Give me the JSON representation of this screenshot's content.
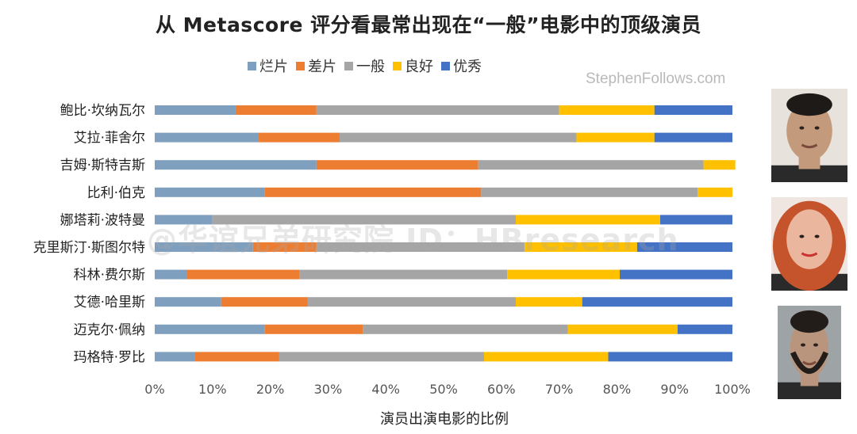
{
  "chart_data": {
    "type": "bar",
    "orientation": "horizontal",
    "stacked": true,
    "title": "从 Metascore 评分看最常出现在“一般”电影中的顶级演员",
    "xlabel": "演员出演电影的比例",
    "ylabel": "",
    "xlim": [
      0,
      100
    ],
    "x_ticks": [
      "0%",
      "10%",
      "20%",
      "30%",
      "40%",
      "50%",
      "60%",
      "70%",
      "80%",
      "90%",
      "100%"
    ],
    "categories": [
      "鲍比·坎纳瓦尔",
      "艾拉·菲舍尔",
      "吉姆·斯特吉斯",
      "比利·伯克",
      "娜塔莉·波特曼",
      "克里斯汀·斯图尔特",
      "科林·费尔斯",
      "艾德·哈里斯",
      "迈克尔·佩纳",
      "玛格特·罗比"
    ],
    "series": [
      {
        "name": "烂片",
        "color": "#7f9fbe",
        "values": [
          14,
          18,
          28,
          19,
          10,
          17,
          5.5,
          11.5,
          19,
          7
        ]
      },
      {
        "name": "差片",
        "color": "#ed7d31",
        "values": [
          14,
          14,
          28,
          37.5,
          0,
          11,
          19.5,
          15,
          17,
          14.5
        ]
      },
      {
        "name": "一般",
        "color": "#a5a5a5",
        "values": [
          42,
          41,
          39,
          37.5,
          52.5,
          36,
          36,
          36,
          35.5,
          35.5
        ]
      },
      {
        "name": "良好",
        "color": "#ffc000",
        "values": [
          16.5,
          13.5,
          5.5,
          6,
          25,
          19.5,
          19.5,
          11.5,
          19,
          21.5
        ]
      },
      {
        "name": "优秀",
        "color": "#4472c4",
        "values": [
          13.5,
          13.5,
          0,
          0,
          12.5,
          16.5,
          19.5,
          26,
          9.5,
          21.5
        ]
      }
    ]
  },
  "source": "StephenFollows.com",
  "watermark": "@华谊兄弟研究院 ID：HBresearch",
  "photos": [
    {
      "label": "鲍比·坎纳瓦尔 photo",
      "bg": "#e8e2dc",
      "skin": "#c39a7c",
      "hair": "#1e1a17"
    },
    {
      "label": "艾拉·菲舍尔 photo",
      "bg": "#efe6e2",
      "skin": "#eab79e",
      "hair": "#c5542d"
    },
    {
      "label": "迈克尔·佩纳 photo",
      "bg": "#9ea3a6",
      "skin": "#b9957d",
      "hair": "#231d1a"
    }
  ]
}
